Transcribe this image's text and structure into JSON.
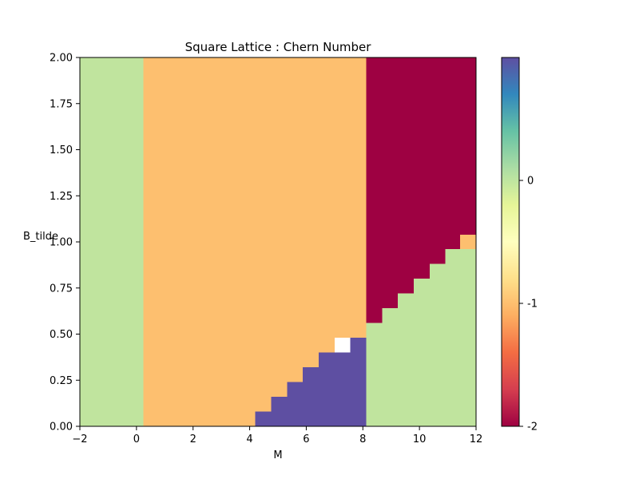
{
  "chart_data": {
    "type": "heatmap",
    "title": "Square Lattice : Chern Number",
    "xlabel": "M",
    "ylabel": "B_tilde",
    "xlim": [
      -2,
      12
    ],
    "ylim": [
      0,
      2
    ],
    "grid": false,
    "x_ticks": [
      "−2",
      "0",
      "2",
      "4",
      "6",
      "8",
      "10",
      "12"
    ],
    "x_tick_values": [
      -2,
      0,
      2,
      4,
      6,
      8,
      10,
      12
    ],
    "y_ticks": [
      "0.00",
      "0.25",
      "0.50",
      "0.75",
      "1.00",
      "1.25",
      "1.50",
      "1.75",
      "2.00"
    ],
    "y_tick_values": [
      0,
      0.25,
      0.5,
      0.75,
      1.0,
      1.25,
      1.5,
      1.75,
      2.0
    ],
    "colorbar": {
      "colormap": "Spectral",
      "range": [
        -2,
        1
      ],
      "ticks": [
        "0",
        "-1",
        "-2"
      ],
      "tick_values": [
        0,
        -1,
        -2
      ]
    },
    "value_colors": {
      "-2": "#9e0142",
      "-1": "#fdbf6f",
      "0": "#c0e49e",
      "1": "#5e4fa2"
    },
    "regions": [
      {
        "value": 0,
        "x": [
          -2,
          0.24
        ],
        "y": [
          0,
          2
        ]
      },
      {
        "value": -1,
        "x": [
          0.24,
          8.12
        ],
        "y": [
          0,
          2
        ]
      },
      {
        "value": -2,
        "x": [
          8.12,
          12
        ],
        "y": [
          0.56,
          2
        ]
      },
      {
        "value": 0,
        "x": [
          8.12,
          12
        ],
        "y": [
          0,
          0.56
        ]
      },
      {
        "value": 1,
        "x": [
          4.2,
          8.12
        ],
        "y": [
          0,
          0.48
        ]
      }
    ],
    "steps": [
      {
        "x": [
          4.2,
          4.76
        ],
        "y_top": 0.08
      },
      {
        "x": [
          4.76,
          5.32
        ],
        "y_top": 0.16
      },
      {
        "x": [
          5.32,
          5.88
        ],
        "y_top": 0.24
      },
      {
        "x": [
          5.88,
          6.44
        ],
        "y_top": 0.32
      },
      {
        "x": [
          6.44,
          7.0
        ],
        "y_top": 0.4
      },
      {
        "x": [
          7.0,
          7.56
        ],
        "y_top": 0.4
      },
      {
        "x": [
          7.56,
          8.12
        ],
        "y_top": 0.48
      }
    ],
    "missing_cells": [
      {
        "x": [
          7.0,
          7.56
        ],
        "y": [
          0.4,
          0.48
        ]
      }
    ],
    "upper_steps": [
      {
        "x": [
          8.12,
          8.68
        ],
        "y_top": 0.56
      },
      {
        "x": [
          8.68,
          9.24
        ],
        "y_top": 0.64
      },
      {
        "x": [
          9.24,
          9.8
        ],
        "y_top": 0.72
      },
      {
        "x": [
          9.8,
          10.36
        ],
        "y_top": 0.8
      },
      {
        "x": [
          10.36,
          10.92
        ],
        "y_top": 0.88
      },
      {
        "x": [
          10.92,
          11.48
        ],
        "y_top": 0.96
      },
      {
        "x": [
          11.48,
          12.0
        ],
        "y_top": 0.96
      }
    ],
    "special_cells": [
      {
        "value": -1,
        "x": [
          11.44,
          12.0
        ],
        "y": [
          0.96,
          1.04
        ]
      }
    ]
  }
}
